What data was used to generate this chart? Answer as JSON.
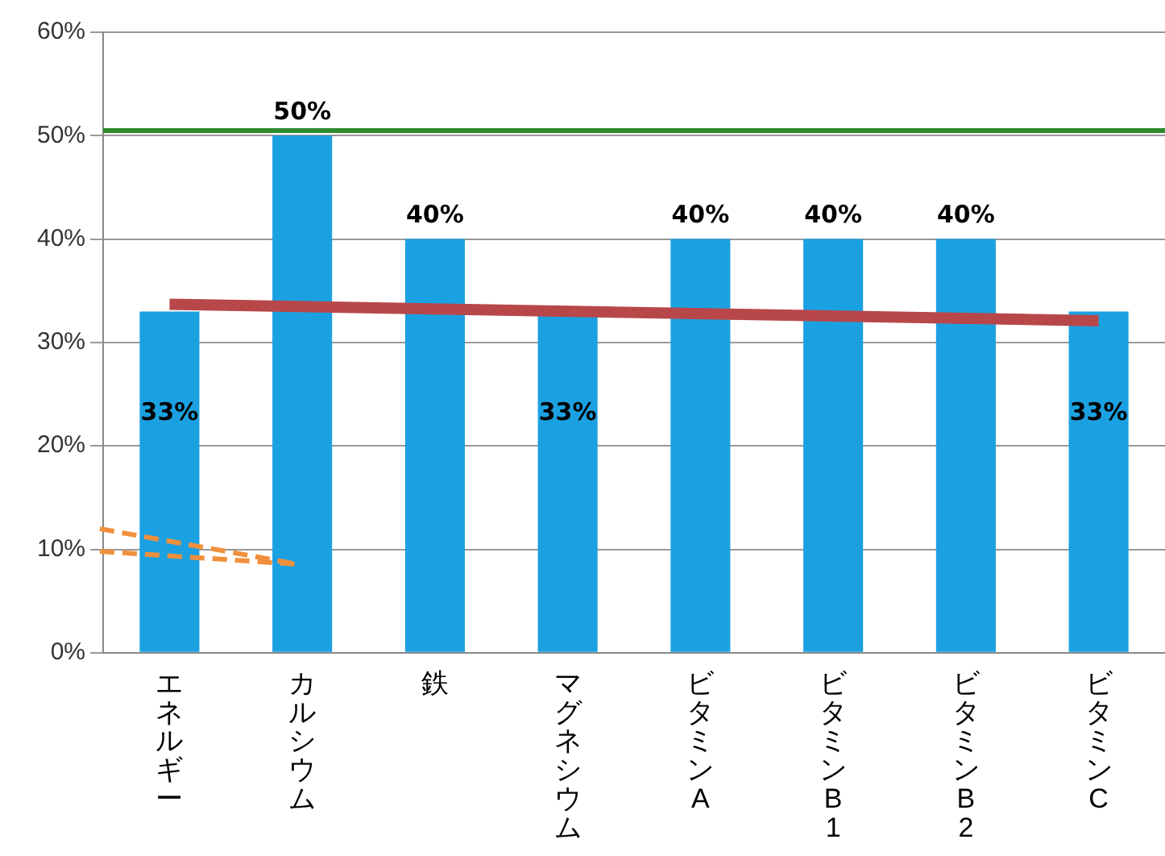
{
  "chart_data": {
    "type": "bar",
    "categories": [
      "エネルギー",
      "カルシウム",
      "鉄",
      "マグネシウム",
      "ビタミンA",
      "ビタミンB1",
      "ビタミンB2",
      "ビタミンC"
    ],
    "series": [
      {
        "color": "#1ba1e2",
        "values": [
          33,
          50,
          40,
          33,
          40,
          40,
          40,
          33
        ],
        "value_labels": [
          "33%",
          "50%",
          "40%",
          "33%",
          "40%",
          "40%",
          "40%",
          "33%"
        ]
      },
      {
        "type": "line",
        "color": "#b8474a",
        "values": [
          33.7,
          null,
          null,
          null,
          null,
          null,
          null,
          32.1
        ]
      }
    ],
    "ylim": [
      0,
      60
    ],
    "yticks": [
      {
        "value": 0,
        "label": "0%"
      },
      {
        "value": 10,
        "label": "10%"
      },
      {
        "value": 20,
        "label": "20%"
      },
      {
        "value": 30,
        "label": "30%"
      },
      {
        "value": 40,
        "label": "40%"
      },
      {
        "value": 50,
        "label": "50%"
      },
      {
        "value": 60,
        "label": "60%"
      }
    ],
    "ref_lines": [
      {
        "axis": "y",
        "value": 50.5,
        "color": "#2e8b2e"
      }
    ],
    "grid": "y",
    "legend": false,
    "marker": "none"
  }
}
